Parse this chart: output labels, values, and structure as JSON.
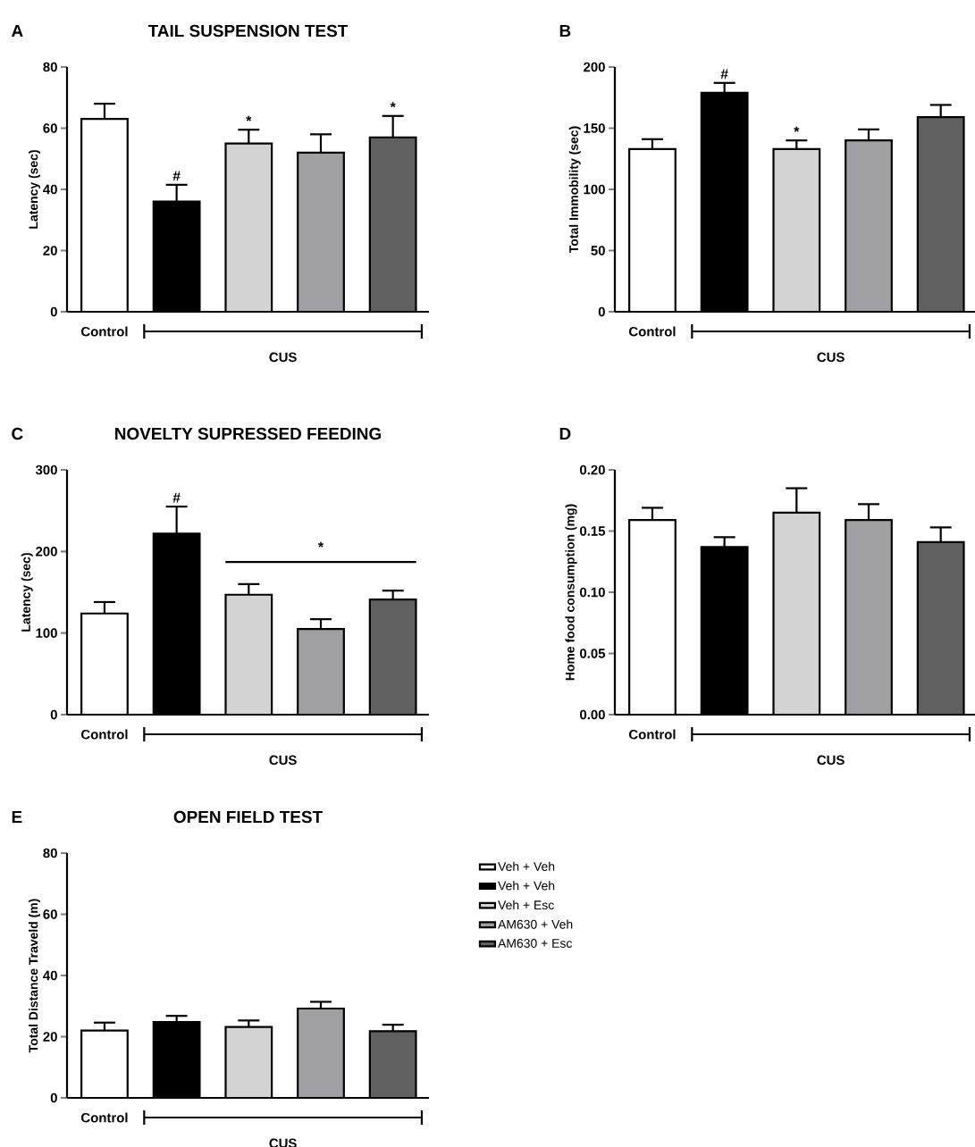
{
  "chart_data": [
    {
      "type": "bar",
      "title": "TAIL SUSPENSION TEST",
      "ylabel": "Latency (sec)",
      "categories": [
        "Control",
        null,
        null,
        null,
        null
      ],
      "values": [
        63,
        36,
        55,
        52,
        57
      ],
      "colors": [
        "#ffffff",
        "#000000",
        "#d3d3d3",
        "#a0a0a4",
        "#606060"
      ],
      "errors": [
        [
          63,
          68
        ],
        [
          36,
          41.5
        ],
        [
          55,
          59.5
        ],
        [
          52,
          58
        ],
        [
          57,
          64
        ]
      ],
      "value_labels": [
        null,
        "#",
        "*",
        null,
        "*"
      ],
      "ylim": [
        0,
        80
      ],
      "yticks": [
        0,
        20,
        40,
        60,
        80
      ],
      "annotations": [
        "A",
        "CUS"
      ]
    },
    {
      "type": "bar",
      "ylabel": "Total Immobility (sec)",
      "categories": [
        "Control",
        null,
        null,
        null,
        null
      ],
      "values": [
        133,
        179,
        133,
        140,
        159
      ],
      "colors": [
        "#ffffff",
        "#000000",
        "#d3d3d3",
        "#a0a0a4",
        "#606060"
      ],
      "errors": [
        [
          133,
          141
        ],
        [
          179,
          187
        ],
        [
          133,
          140
        ],
        [
          140,
          149
        ],
        [
          159,
          169
        ]
      ],
      "value_labels": [
        null,
        "#",
        "*",
        null,
        null
      ],
      "ylim": [
        0,
        200
      ],
      "yticks": [
        0,
        50,
        100,
        150,
        200
      ],
      "annotations": [
        "B",
        "CUS"
      ]
    },
    {
      "type": "bar",
      "title": "NOVELTY SUPRESSED FEEDING",
      "ylabel": "Latency (sec)",
      "categories": [
        "Control",
        null,
        null,
        null,
        null
      ],
      "values": [
        124,
        222,
        147,
        105,
        141
      ],
      "colors": [
        "#ffffff",
        "#000000",
        "#d3d3d3",
        "#a0a0a4",
        "#606060"
      ],
      "errors": [
        [
          124,
          138
        ],
        [
          222,
          255
        ],
        [
          147,
          160
        ],
        [
          105,
          117
        ],
        [
          141,
          152
        ]
      ],
      "value_labels": [
        null,
        "#",
        null,
        null,
        null
      ],
      "ylim": [
        0,
        300
      ],
      "yticks": [
        0,
        100,
        200,
        300
      ],
      "annotations": [
        "C",
        "CUS"
      ],
      "ref_lines": [
        {
          "axis": "y",
          "value": 187,
          "label": "*"
        }
      ]
    },
    {
      "type": "bar",
      "ylabel": "Home food consumption (mg)",
      "categories": [
        "Control",
        null,
        null,
        null,
        null
      ],
      "values": [
        0.159,
        0.137,
        0.165,
        0.159,
        0.141
      ],
      "colors": [
        "#ffffff",
        "#000000",
        "#d3d3d3",
        "#a0a0a4",
        "#606060"
      ],
      "errors": [
        [
          0.159,
          0.169
        ],
        [
          0.137,
          0.145
        ],
        [
          0.165,
          0.185
        ],
        [
          0.159,
          0.172
        ],
        [
          0.141,
          0.153
        ]
      ],
      "ylim": [
        0,
        0.2
      ],
      "yticks": [
        {
          "value": 0,
          "label": "0.00"
        },
        {
          "value": 0.05,
          "label": "0.05"
        },
        {
          "value": 0.1,
          "label": "0.10"
        },
        {
          "value": 0.15,
          "label": "0.15"
        },
        {
          "value": 0.2,
          "label": "0.20"
        }
      ],
      "annotations": [
        "D",
        "CUS"
      ]
    },
    {
      "type": "bar",
      "title": "OPEN FIELD TEST",
      "ylabel": "Total Distance Traveld (m)",
      "categories": [
        "Control",
        null,
        null,
        null,
        null
      ],
      "legend": "right",
      "ylim": [
        0,
        80
      ],
      "yticks": [
        0,
        20,
        40,
        60,
        80
      ],
      "annotations": [
        "E",
        "CUS"
      ],
      "series": [
        {
          "name": "Veh + Veh",
          "color": "#ffffff",
          "values": [
            22,
            null,
            null,
            null,
            null
          ],
          "errors": [
            [
              22,
              24.6
            ],
            null,
            null,
            null,
            null
          ]
        },
        {
          "name": "Veh + Veh",
          "color": "#000000",
          "values": [
            null,
            24.8,
            null,
            null,
            null
          ],
          "errors": [
            null,
            [
              24.8,
              26.8
            ],
            null,
            null,
            null
          ]
        },
        {
          "name": "Veh + Esc",
          "color": "#d3d3d3",
          "values": [
            null,
            null,
            23.2,
            null,
            null
          ],
          "errors": [
            null,
            null,
            [
              23.2,
              25.3
            ],
            null,
            null
          ]
        },
        {
          "name": "AM630 + Veh",
          "color": "#a0a0a4",
          "values": [
            null,
            null,
            null,
            29.2,
            null
          ],
          "errors": [
            null,
            null,
            null,
            [
              29.2,
              31.4
            ],
            null
          ]
        },
        {
          "name": "AM630 + Esc",
          "color": "#606060",
          "values": [
            null,
            null,
            null,
            null,
            21.8
          ],
          "errors": [
            null,
            null,
            null,
            null,
            [
              21.8,
              23.9
            ]
          ]
        }
      ]
    }
  ]
}
